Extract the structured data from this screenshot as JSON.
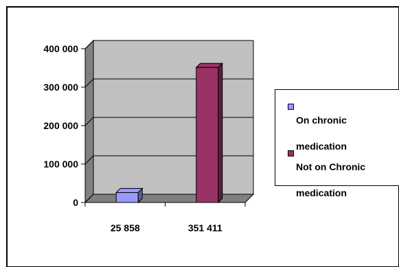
{
  "chart_data": {
    "type": "bar",
    "categories": [
      "25 858",
      "351 411"
    ],
    "series": [
      {
        "name": "On chronic medication",
        "color": "#9999FF",
        "values": [
          25858,
          null
        ]
      },
      {
        "name": "Not on Chronic medication",
        "color": "#993366",
        "values": [
          null,
          351411
        ]
      }
    ],
    "title": "",
    "xlabel": "",
    "ylabel": "",
    "ylim": [
      0,
      400000
    ],
    "yticks": [
      0,
      100000,
      200000,
      300000,
      400000
    ],
    "ytick_labels": [
      "0",
      "100 000",
      "200 000",
      "300 000",
      "400 000"
    ],
    "grid": true,
    "plot_background": "#C0C0C0",
    "legend_position": "right",
    "legend": [
      {
        "label_line1": "On chronic",
        "label_line2": "medication"
      },
      {
        "label_line1": "Not on Chronic",
        "label_line2": "medication"
      }
    ]
  }
}
